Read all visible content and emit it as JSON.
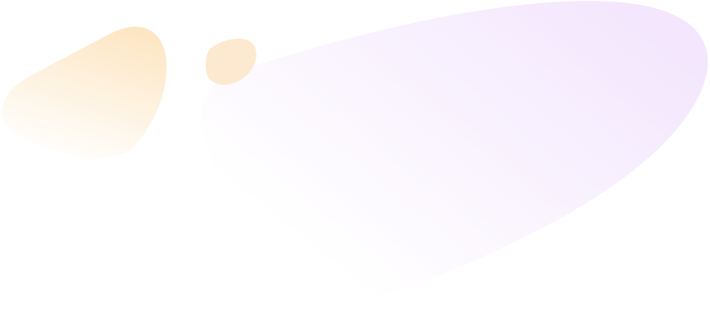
{
  "colors": {
    "orange_blob": "#fde6c4",
    "purple_blob": "#f3e6fd",
    "background": "#ffffff"
  }
}
